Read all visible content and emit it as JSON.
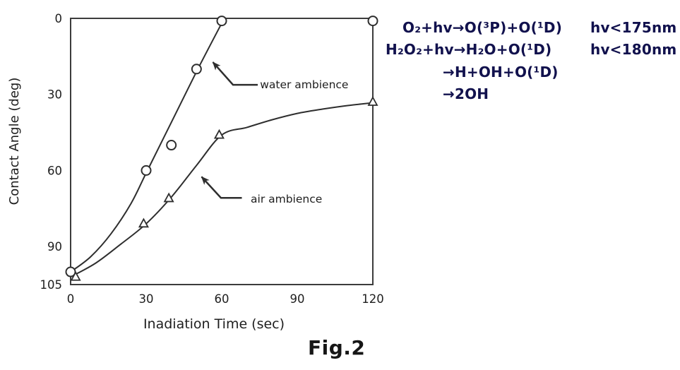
{
  "caption": {
    "text": "Fig.2"
  },
  "colors": {
    "curve_line": "#2e2e2e",
    "axis_line": "#3c3c3c",
    "chart_text": "#1e1e1e",
    "equation_text": "#11114d",
    "background": "#ffffff",
    "marker_fill": "#ffffff"
  },
  "equations": {
    "lines": [
      {
        "formula": "O₂+hv→O(³P)+O(¹D)",
        "condition": "hv<175nm"
      },
      {
        "formula": "H₂O₂+hv→H₂O+O(¹D)",
        "condition": "hv<180nm"
      },
      {
        "formula": "→H+OH+O(¹D)",
        "condition": ""
      },
      {
        "formula": "→2OH",
        "condition": ""
      }
    ]
  },
  "chart_data": {
    "type": "line",
    "title": "",
    "xlabel": "Inadiation Time (sec)",
    "ylabel": "Contact Angle (deg)",
    "xlim": [
      0,
      120
    ],
    "ylim": [
      0,
      105
    ],
    "y_axis_inverted": true,
    "grid": false,
    "x_ticks": [
      0,
      30,
      60,
      90,
      120
    ],
    "y_ticks": [
      0,
      30,
      60,
      90,
      105
    ],
    "series": [
      {
        "name": "water ambience",
        "marker": "circle",
        "points": [
          [
            0,
            100
          ],
          [
            30,
            60
          ],
          [
            40,
            50
          ],
          [
            50,
            20
          ],
          [
            60,
            1
          ],
          [
            120,
            1
          ]
        ],
        "curve": [
          [
            0,
            100
          ],
          [
            8,
            94
          ],
          [
            16,
            85
          ],
          [
            24,
            73
          ],
          [
            30,
            61
          ],
          [
            40,
            41
          ],
          [
            50,
            21
          ],
          [
            61,
            0
          ]
        ]
      },
      {
        "name": "air ambience",
        "marker": "triangle",
        "points": [
          [
            2,
            102
          ],
          [
            29,
            81
          ],
          [
            39,
            71
          ],
          [
            59,
            46
          ],
          [
            120,
            33
          ]
        ],
        "curve": [
          [
            0,
            102
          ],
          [
            10,
            96.5
          ],
          [
            20,
            89
          ],
          [
            30,
            81
          ],
          [
            40,
            70.5
          ],
          [
            50,
            58
          ],
          [
            60,
            46
          ],
          [
            70,
            43
          ],
          [
            80,
            40
          ],
          [
            90,
            37.5
          ],
          [
            100,
            35.8
          ],
          [
            110,
            34.4
          ],
          [
            120,
            33.3
          ]
        ]
      }
    ],
    "annotations": [
      {
        "label": "water ambience",
        "label_x": 75.2,
        "label_y": 27.6,
        "line": [
          [
            74.3,
            26.2
          ],
          [
            64.5,
            26.2
          ],
          [
            56.5,
            17.3
          ]
        ]
      },
      {
        "label": "air ambience",
        "label_x": 71.5,
        "label_y": 72.7,
        "line": [
          [
            68,
            70.8
          ],
          [
            59.7,
            70.8
          ],
          [
            52,
            62.5
          ]
        ]
      }
    ]
  }
}
